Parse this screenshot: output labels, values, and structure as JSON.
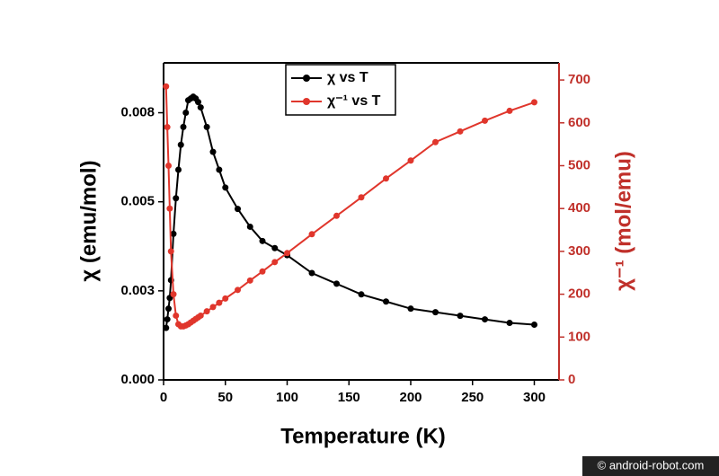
{
  "chart_data": {
    "type": "line",
    "x_label": "Temperature (K)",
    "y_label": "χ (emu/mol)",
    "y2_label": "χ⁻¹ (mol/emu)",
    "x": [
      2,
      3,
      4,
      5,
      6,
      8,
      10,
      12,
      14,
      16,
      18,
      20,
      22,
      24,
      26,
      28,
      30,
      35,
      40,
      45,
      50,
      60,
      70,
      80,
      90,
      100,
      120,
      140,
      160,
      180,
      200,
      220,
      240,
      260,
      280,
      300
    ],
    "series": [
      {
        "name": "χ vs T",
        "color": "#000000",
        "axis": "y",
        "values": [
          0.00146,
          0.0017,
          0.002,
          0.0023,
          0.0028,
          0.0041,
          0.0051,
          0.0059,
          0.0066,
          0.0071,
          0.0075,
          0.00785,
          0.0079,
          0.00795,
          0.0079,
          0.0078,
          0.00765,
          0.0071,
          0.0064,
          0.0059,
          0.0054,
          0.0048,
          0.0043,
          0.0039,
          0.0037,
          0.0035,
          0.003,
          0.0027,
          0.0024,
          0.0022,
          0.002,
          0.0019,
          0.0018,
          0.0017,
          0.0016,
          0.00155
        ]
      },
      {
        "name": "χ⁻¹ vs T",
        "color": "#e0362c",
        "axis": "y2",
        "values": [
          685,
          590,
          500,
          400,
          300,
          200,
          150,
          130,
          125,
          125,
          127,
          130,
          134,
          138,
          142,
          146,
          150,
          160,
          170,
          180,
          190,
          210,
          232,
          253,
          275,
          296,
          340,
          383,
          426,
          470,
          512,
          555,
          580,
          605,
          628,
          648
        ]
      }
    ],
    "xlim": [
      0,
      320
    ],
    "xticks": [
      0,
      50,
      100,
      150,
      200,
      250,
      300
    ],
    "ylim": [
      0,
      0.0089
    ],
    "yticks": [
      {
        "value": 0,
        "label": "0.000"
      },
      {
        "value": 0.0025,
        "label": "0.003"
      },
      {
        "value": 0.005,
        "label": "0.005"
      },
      {
        "value": 0.0075,
        "label": "0.008"
      }
    ],
    "y2lim": [
      0,
      740
    ],
    "y2ticks": [
      0,
      100,
      200,
      300,
      400,
      500,
      600,
      700
    ],
    "y2_color": "#c0302a",
    "legend": "top-center",
    "watermark": "© android-robot.com"
  }
}
